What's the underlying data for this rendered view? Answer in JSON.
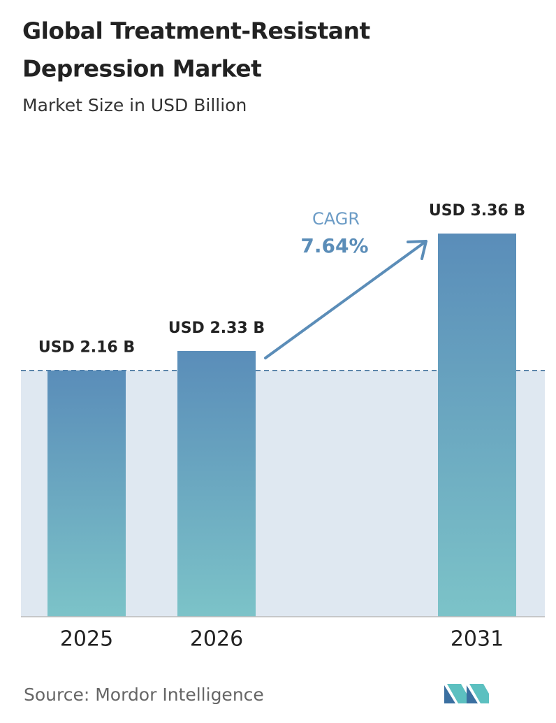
{
  "chart_data": {
    "type": "bar",
    "title_lines": [
      "Global Treatment-Resistant",
      "Depression Market"
    ],
    "subtitle": "Market Size in USD Billion",
    "categories": [
      "2025",
      "2026",
      "2031"
    ],
    "values": [
      2.16,
      2.33,
      3.36
    ],
    "value_labels": [
      "USD 2.16 B",
      "USD 2.33 B",
      "USD 3.36 B"
    ],
    "cagr_label": "CAGR",
    "cagr_value": "7.64%",
    "source": "Source:  Mordor Intelligence",
    "color_top": "#5a8db9",
    "color_bottom": "#7cc3c8"
  }
}
